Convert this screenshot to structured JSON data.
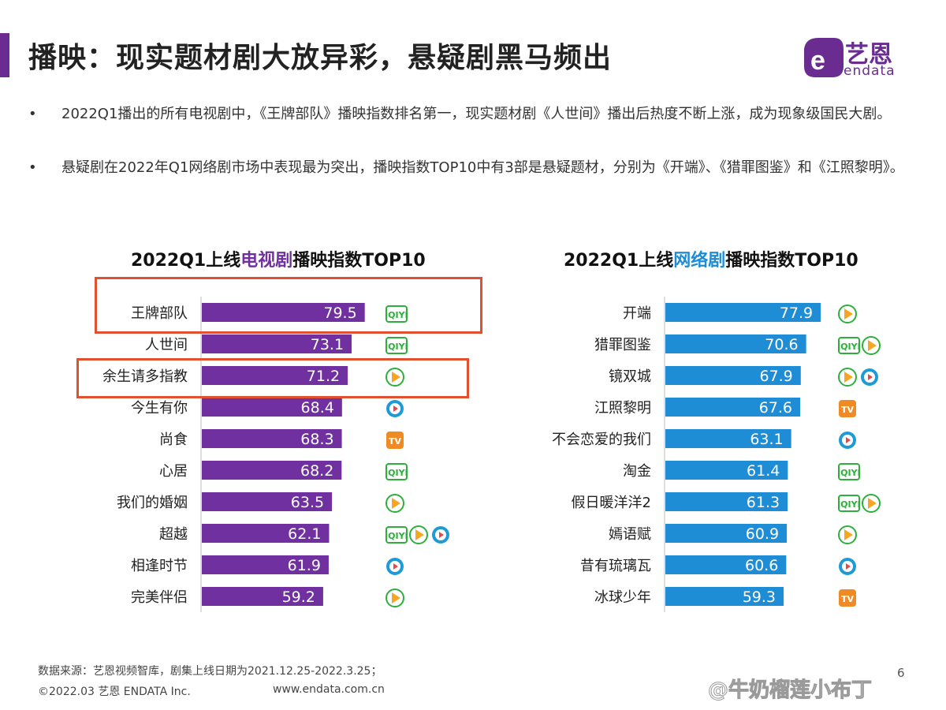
{
  "header": {
    "title": "播映：现实题材剧大放异彩，悬疑剧黑马频出",
    "accent_color": "#6a2c91",
    "logo_text": "艺恩",
    "logo_sub": "endata"
  },
  "bullets": [
    "2022Q1播出的所有电视剧中，《王牌部队》播映指数排名第一，现实题材剧《人世间》播出后热度不断上涨，成为现象级国民大剧。",
    "悬疑剧在2022年Q1网络剧市场中表现最为突出，播映指数TOP10中有3部是悬疑题材，分别为《开端》、《猎罪图鉴》和《江照黎明》。"
  ],
  "bullet_marker": "•",
  "chart_data": [
    {
      "type": "bar",
      "orientation": "horizontal",
      "title_parts": [
        "2022Q1上线",
        "电视剧",
        "播映指数TOP10"
      ],
      "categories": [
        "王牌部队",
        "人世间",
        "余生请多指教",
        "今生有你",
        "尚食",
        "心居",
        "我们的婚姻",
        "超越",
        "相逢时节",
        "完美伴侣"
      ],
      "values": [
        79.5,
        73.1,
        71.2,
        68.4,
        68.3,
        68.2,
        63.5,
        62.1,
        61.9,
        59.2
      ],
      "platforms": [
        [
          "iqiyi"
        ],
        [
          "iqiyi"
        ],
        [
          "tencent"
        ],
        [
          "youku"
        ],
        [
          "mango"
        ],
        [
          "iqiyi"
        ],
        [
          "tencent"
        ],
        [
          "iqiyi",
          "tencent",
          "youku"
        ],
        [
          "youku"
        ],
        [
          "tencent"
        ]
      ],
      "bar_color": "#7030a0",
      "highlight_color": "#7030a0",
      "highlighted": [
        "王牌部队",
        "余生请多指教"
      ]
    },
    {
      "type": "bar",
      "orientation": "horizontal",
      "title_parts": [
        "2022Q1上线",
        "网络剧",
        "播映指数TOP10"
      ],
      "categories": [
        "开端",
        "猎罪图鉴",
        "镜双城",
        "江照黎明",
        "不会恋爱的我们",
        "淘金",
        "假日暖洋洋2",
        "嫣语赋",
        "昔有琉璃瓦",
        "冰球少年"
      ],
      "values": [
        77.9,
        70.6,
        67.9,
        67.6,
        63.1,
        61.4,
        61.3,
        60.9,
        60.6,
        59.3
      ],
      "platforms": [
        [
          "tencent"
        ],
        [
          "iqiyi",
          "tencent"
        ],
        [
          "tencent",
          "youku"
        ],
        [
          "mango"
        ],
        [
          "youku"
        ],
        [
          "iqiyi"
        ],
        [
          "iqiyi",
          "tencent"
        ],
        [
          "tencent"
        ],
        [
          "youku"
        ],
        [
          "mango"
        ]
      ],
      "bar_color": "#1f8dd6",
      "highlight_color": "#1f8dd6"
    }
  ],
  "platform_icons": {
    "iqiyi": {
      "label": "iQIYI",
      "color": "#2fae3e"
    },
    "tencent": {
      "label": "",
      "color": "#2fae3e"
    },
    "youku": {
      "label": "",
      "color": "#1e9bd7"
    },
    "mango": {
      "label": "TV",
      "color": "#f08a24"
    }
  },
  "footer": {
    "source": "数据来源：艺恩视频智库，剧集上线日期为2021.12.25-2022.3.25；",
    "copyright": "©2022.03 艺恩 ENDATA Inc.",
    "site": "www.endata.com.cn",
    "page": "6",
    "watermark": "@牛奶榴莲小布丁"
  }
}
